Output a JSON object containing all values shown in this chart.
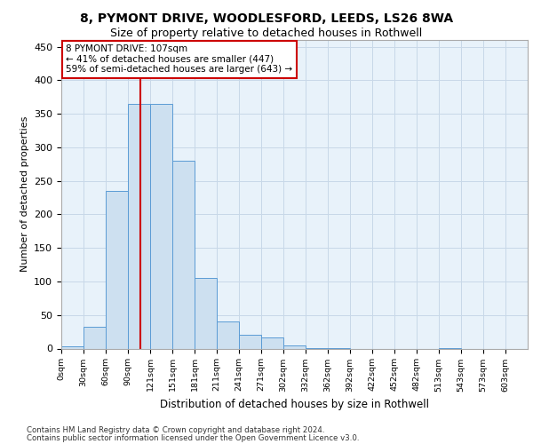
{
  "title1": "8, PYMONT DRIVE, WOODLESFORD, LEEDS, LS26 8WA",
  "title2": "Size of property relative to detached houses in Rothwell",
  "xlabel": "Distribution of detached houses by size in Rothwell",
  "ylabel": "Number of detached properties",
  "bin_labels": [
    "0sqm",
    "30sqm",
    "60sqm",
    "90sqm",
    "121sqm",
    "151sqm",
    "181sqm",
    "211sqm",
    "241sqm",
    "271sqm",
    "302sqm",
    "332sqm",
    "362sqm",
    "392sqm",
    "422sqm",
    "452sqm",
    "482sqm",
    "513sqm",
    "543sqm",
    "573sqm",
    "603sqm"
  ],
  "bar_values": [
    3,
    32,
    235,
    365,
    365,
    280,
    105,
    41,
    21,
    16,
    5,
    1,
    1,
    0,
    0,
    0,
    0,
    1,
    0,
    0,
    0
  ],
  "bar_color": "#cde0f0",
  "bar_edge_color": "#5b9bd5",
  "ylim": [
    0,
    460
  ],
  "yticks": [
    0,
    50,
    100,
    150,
    200,
    250,
    300,
    350,
    400,
    450
  ],
  "annotation_title": "8 PYMONT DRIVE: 107sqm",
  "annotation_line1": "← 41% of detached houses are smaller (447)",
  "annotation_line2": "59% of semi-detached houses are larger (643) →",
  "annotation_box_color": "#ffffff",
  "annotation_border_color": "#cc0000",
  "vline_color": "#cc0000",
  "grid_color": "#c8d8e8",
  "bg_color": "#e8f2fa",
  "footer1": "Contains HM Land Registry data © Crown copyright and database right 2024.",
  "footer2": "Contains public sector information licensed under the Open Government Licence v3.0."
}
